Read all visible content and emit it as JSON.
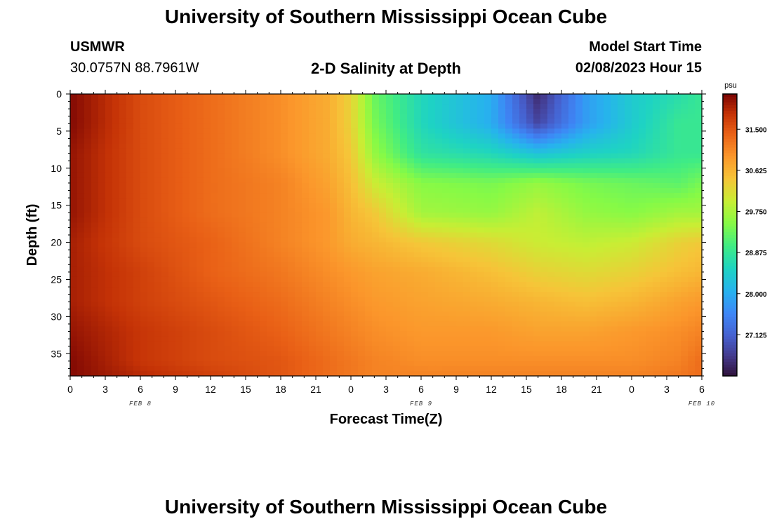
{
  "header": {
    "title": "University of Southern Mississippi Ocean Cube",
    "station": "USMWR",
    "coords": "30.0757N  88.7961W",
    "plot_title": "2-D Salinity at Depth",
    "model_label": "Model Start Time",
    "model_time": "02/08/2023 Hour 15"
  },
  "footer": {
    "title": "University of Southern Mississippi Ocean Cube"
  },
  "chart_data": {
    "type": "heatmap",
    "title": "2-D Salinity at Depth",
    "xlabel": "Forecast Time(Z)",
    "ylabel": "Depth (ft)",
    "x_tick_labels": [
      "0",
      "3",
      "6",
      "9",
      "12",
      "15",
      "18",
      "21",
      "0",
      "3",
      "6",
      "9",
      "12",
      "15",
      "18",
      "21",
      "0",
      "3",
      "6"
    ],
    "date_labels": [
      "FEB 8",
      "FEB 9",
      "FEB 10"
    ],
    "date_label_hours": [
      6,
      30,
      54
    ],
    "x_range_hours": [
      0,
      54
    ],
    "y_ticks": [
      0,
      5,
      10,
      15,
      20,
      25,
      30,
      35
    ],
    "ylim": [
      0,
      38
    ],
    "colorbar": {
      "unit": "psu",
      "min": 26.25,
      "max": 32.25,
      "ticks": [
        "31.500",
        "30.625",
        "29.750",
        "28.875",
        "28.000",
        "27.125"
      ],
      "tick_values": [
        31.5,
        30.625,
        29.75,
        28.875,
        28.0,
        27.125
      ]
    },
    "depths": [
      0,
      4,
      8,
      12,
      16,
      20,
      24,
      28,
      32,
      36,
      38
    ],
    "times": [
      0,
      6,
      12,
      18,
      22,
      24,
      26,
      30,
      36,
      40,
      44,
      48,
      52,
      54
    ],
    "salinity": [
      [
        32.2,
        31.6,
        31.3,
        31.0,
        30.7,
        30.3,
        29.3,
        28.6,
        28.0,
        26.5,
        27.8,
        28.4,
        28.7,
        28.9
      ],
      [
        32.2,
        31.6,
        31.3,
        31.0,
        30.7,
        30.3,
        29.4,
        28.6,
        28.0,
        26.8,
        27.8,
        28.4,
        28.9,
        28.9
      ],
      [
        32.1,
        31.6,
        31.3,
        31.0,
        30.7,
        30.4,
        29.6,
        28.8,
        28.6,
        28.3,
        28.5,
        28.6,
        28.9,
        28.9
      ],
      [
        32.1,
        31.6,
        31.3,
        31.1,
        30.8,
        30.5,
        30.0,
        29.5,
        29.4,
        29.6,
        29.4,
        29.3,
        29.2,
        29.4
      ],
      [
        32.1,
        31.6,
        31.3,
        31.1,
        30.9,
        30.6,
        30.4,
        29.7,
        29.6,
        29.9,
        29.6,
        29.5,
        29.7,
        29.7
      ],
      [
        32.0,
        31.6,
        31.4,
        31.1,
        30.9,
        30.7,
        30.6,
        30.4,
        30.2,
        30.0,
        29.9,
        30.0,
        30.3,
        30.4
      ],
      [
        32.0,
        31.7,
        31.4,
        31.2,
        31.0,
        30.9,
        30.8,
        30.7,
        30.5,
        30.3,
        30.2,
        30.3,
        30.5,
        30.6
      ],
      [
        32.0,
        31.7,
        31.5,
        31.3,
        31.1,
        31.0,
        30.9,
        30.8,
        30.7,
        30.6,
        30.5,
        30.6,
        30.8,
        30.9
      ],
      [
        32.1,
        31.8,
        31.6,
        31.4,
        31.2,
        31.1,
        31.0,
        30.9,
        30.9,
        30.8,
        30.8,
        30.9,
        31.0,
        31.1
      ],
      [
        32.2,
        31.8,
        31.6,
        31.5,
        31.3,
        31.2,
        31.1,
        31.0,
        31.0,
        31.0,
        31.0,
        31.0,
        31.1,
        31.3
      ],
      [
        32.2,
        31.9,
        31.7,
        31.5,
        31.3,
        31.2,
        31.1,
        31.1,
        31.1,
        31.1,
        31.1,
        31.1,
        31.2,
        31.3
      ]
    ]
  }
}
